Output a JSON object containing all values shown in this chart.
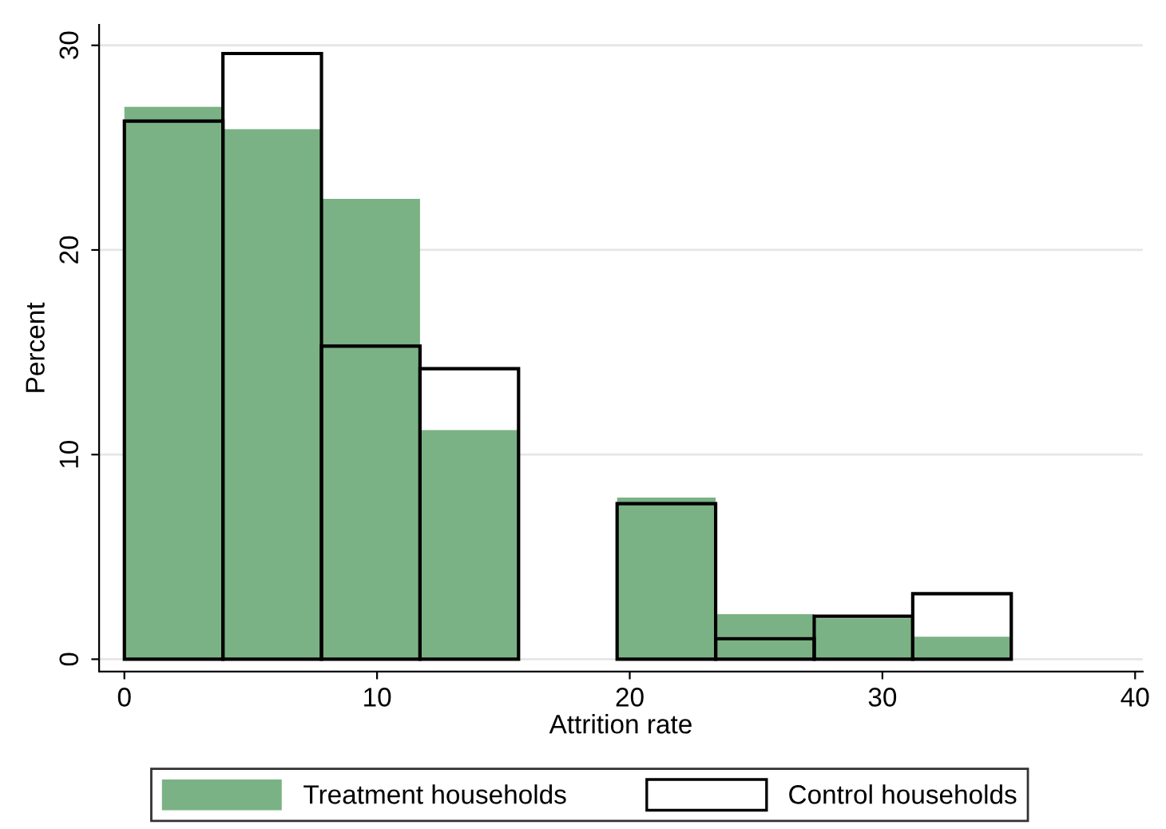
{
  "chart_data": {
    "type": "histogram",
    "xlabel": "Attrition rate",
    "ylabel": "Percent",
    "bins": [
      0,
      3.9,
      7.8,
      11.7,
      15.6,
      19.5,
      23.4,
      27.3,
      31.2,
      35.1
    ],
    "series": [
      {
        "name": "Treatment households",
        "color": "#7bb285",
        "values": [
          27.0,
          25.9,
          22.5,
          11.2,
          0,
          7.9,
          2.2,
          2.0,
          1.1
        ]
      },
      {
        "name": "Control households",
        "color": "#000000",
        "values": [
          26.3,
          29.6,
          15.3,
          14.2,
          0,
          7.6,
          1.0,
          2.1,
          3.2
        ]
      }
    ],
    "xlim": [
      -1,
      40.3
    ],
    "ylim": [
      -0.6,
      31
    ],
    "xticks": [
      0,
      10,
      20,
      30,
      40
    ],
    "yticks": [
      0,
      10,
      20,
      30
    ],
    "grid": "y",
    "legend": "bottom"
  }
}
